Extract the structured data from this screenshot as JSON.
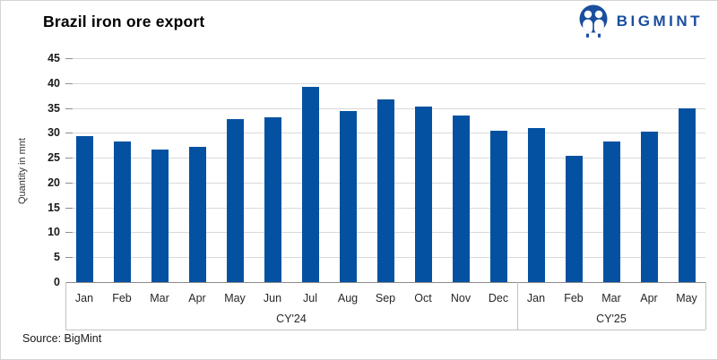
{
  "logo": {
    "text": "BIGMINT",
    "color": "#1a4e9e",
    "icon": "two-people-icon"
  },
  "footer": {
    "source": "Source: BigMint"
  },
  "chart_data": {
    "type": "bar",
    "title": "Brazil iron ore export",
    "ylabel": "Quantity in mnt",
    "xlabel": "",
    "ylim": [
      0,
      45
    ],
    "yticks": [
      0,
      5,
      10,
      15,
      20,
      25,
      30,
      35,
      40,
      45
    ],
    "grid": true,
    "legend": false,
    "bar_color": "#0551a1",
    "groups": [
      {
        "label": "CY'24",
        "categories": [
          "Jan",
          "Feb",
          "Mar",
          "Apr",
          "May",
          "Jun",
          "Jul",
          "Aug",
          "Sep",
          "Oct",
          "Nov",
          "Dec"
        ],
        "values": [
          29.3,
          28.3,
          26.6,
          27.2,
          32.8,
          33.2,
          39.3,
          34.3,
          36.8,
          35.2,
          33.4,
          30.4
        ]
      },
      {
        "label": "CY'25",
        "categories": [
          "Jan",
          "Feb",
          "Mar",
          "Apr",
          "May"
        ],
        "values": [
          31.0,
          25.4,
          28.3,
          30.2,
          34.9
        ]
      }
    ]
  }
}
